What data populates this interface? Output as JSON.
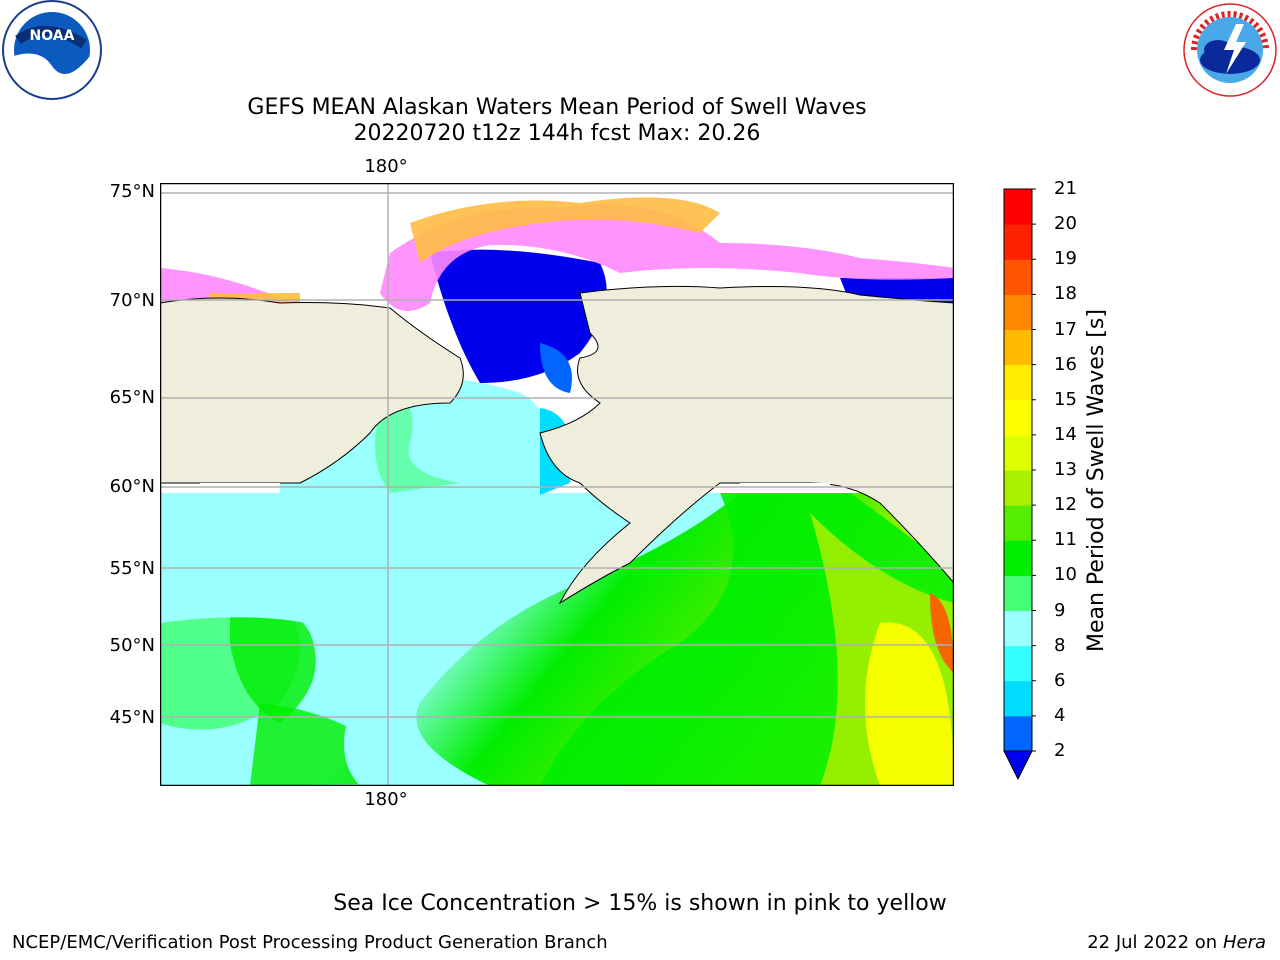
{
  "title_line1": "GEFS MEAN Alaskan Waters Mean Period of Swell Waves",
  "title_line2": "20220720 t12z 144h fcst   Max: 20.26",
  "map": {
    "lon_labels_top": [
      "180°"
    ],
    "lon_labels_bottom": [
      "180°"
    ],
    "lat_labels": [
      "75°N",
      "70°N",
      "65°N",
      "60°N",
      "55°N",
      "50°N",
      "45°N"
    ],
    "land_color": "#efeedc"
  },
  "colorbar": {
    "title": "Mean Period of Swell Waves [s]",
    "ticks": [
      "2",
      "4",
      "6",
      "8",
      "9",
      "10",
      "11",
      "12",
      "13",
      "14",
      "15",
      "16",
      "17",
      "18",
      "19",
      "20",
      "21"
    ],
    "colors": [
      "#0066ff",
      "#00ddff",
      "#33ffff",
      "#99ffff",
      "#44ff77",
      "#00ee00",
      "#55ee00",
      "#aaee00",
      "#ddff00",
      "#ffff00",
      "#ffee00",
      "#ffbb00",
      "#ff8800",
      "#ff5500",
      "#ff2200",
      "#ff0000"
    ],
    "under_color": "#0000ee"
  },
  "caption": "Sea Ice Concentration > 15% is shown in pink to yellow",
  "footer_left": "NCEP/EMC/Verification Post Processing Product Generation Branch",
  "footer_right_date": "22 Jul 2022 on",
  "footer_right_machine": "Hera",
  "logos": {
    "left_text": "NOAA",
    "right_text": "NATIONAL WEATHER SERVICE"
  }
}
